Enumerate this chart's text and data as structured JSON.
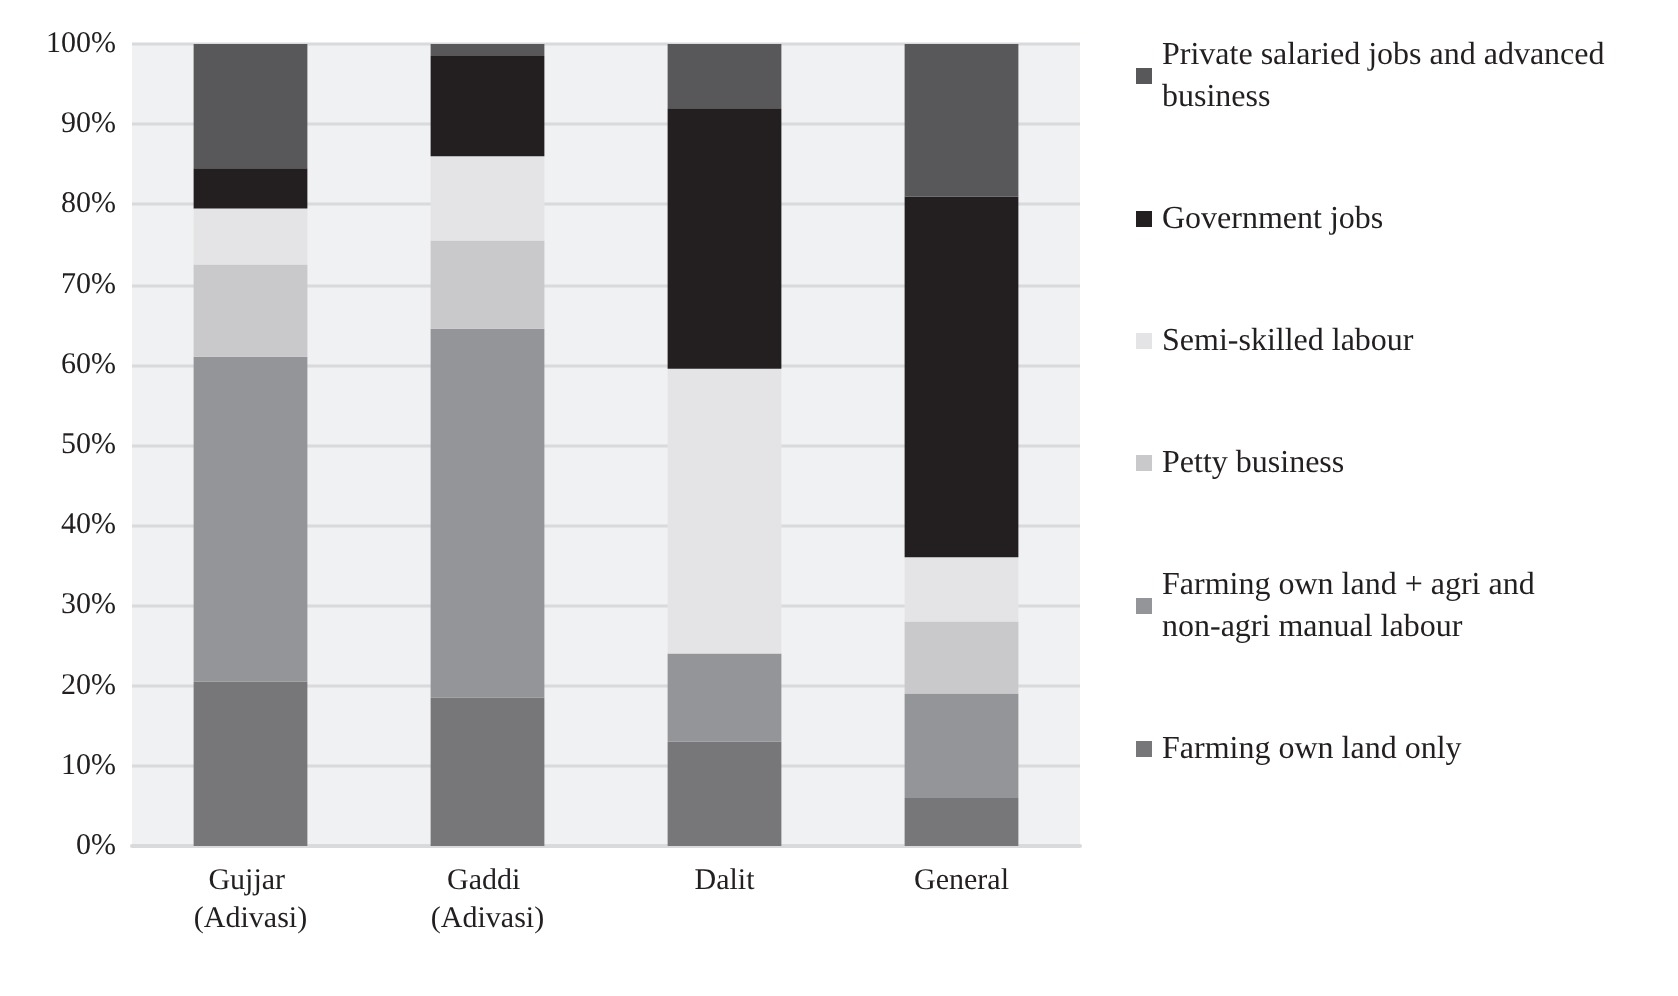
{
  "chart_data": {
    "type": "bar",
    "stacked": true,
    "categories": [
      "Gujjar (Adivasi)",
      "Gaddi (Adivasi)",
      "Dalit",
      "General"
    ],
    "series": [
      {
        "name": "Farming own land only",
        "color": "#77777a",
        "values": [
          20.5,
          18.5,
          13,
          6
        ]
      },
      {
        "name": "Farming own land + agri and non-agri manual labour",
        "color": "#939598",
        "values": [
          40.5,
          46,
          11,
          13
        ]
      },
      {
        "name": "Petty business",
        "color": "#c9c9cb",
        "values": [
          11.5,
          11,
          0,
          9
        ]
      },
      {
        "name": "Semi-skilled labour",
        "color": "#e4e4e6",
        "values": [
          7,
          10.5,
          35.5,
          8
        ]
      },
      {
        "name": "Government jobs",
        "color": "#231f20",
        "values": [
          5,
          12.5,
          32.5,
          45
        ]
      },
      {
        "name": "Private salaried jobs and advanced business",
        "color": "#58585a",
        "values": [
          15.5,
          1.5,
          8,
          19
        ]
      }
    ],
    "ylim": [
      0,
      100
    ],
    "yticks": [
      {
        "value": 0,
        "label": "0%"
      },
      {
        "value": 10,
        "label": "10%"
      },
      {
        "value": 20,
        "label": "20%"
      },
      {
        "value": 30,
        "label": "30%"
      },
      {
        "value": 40,
        "label": "40%"
      },
      {
        "value": 50,
        "label": "50%"
      },
      {
        "value": 60,
        "label": "60%"
      },
      {
        "value": 70,
        "label": "70%"
      },
      {
        "value": 80,
        "label": "80%"
      },
      {
        "value": 90,
        "label": "90%"
      },
      {
        "value": 100,
        "label": "100%"
      }
    ],
    "grid": "y",
    "legend": "right"
  }
}
